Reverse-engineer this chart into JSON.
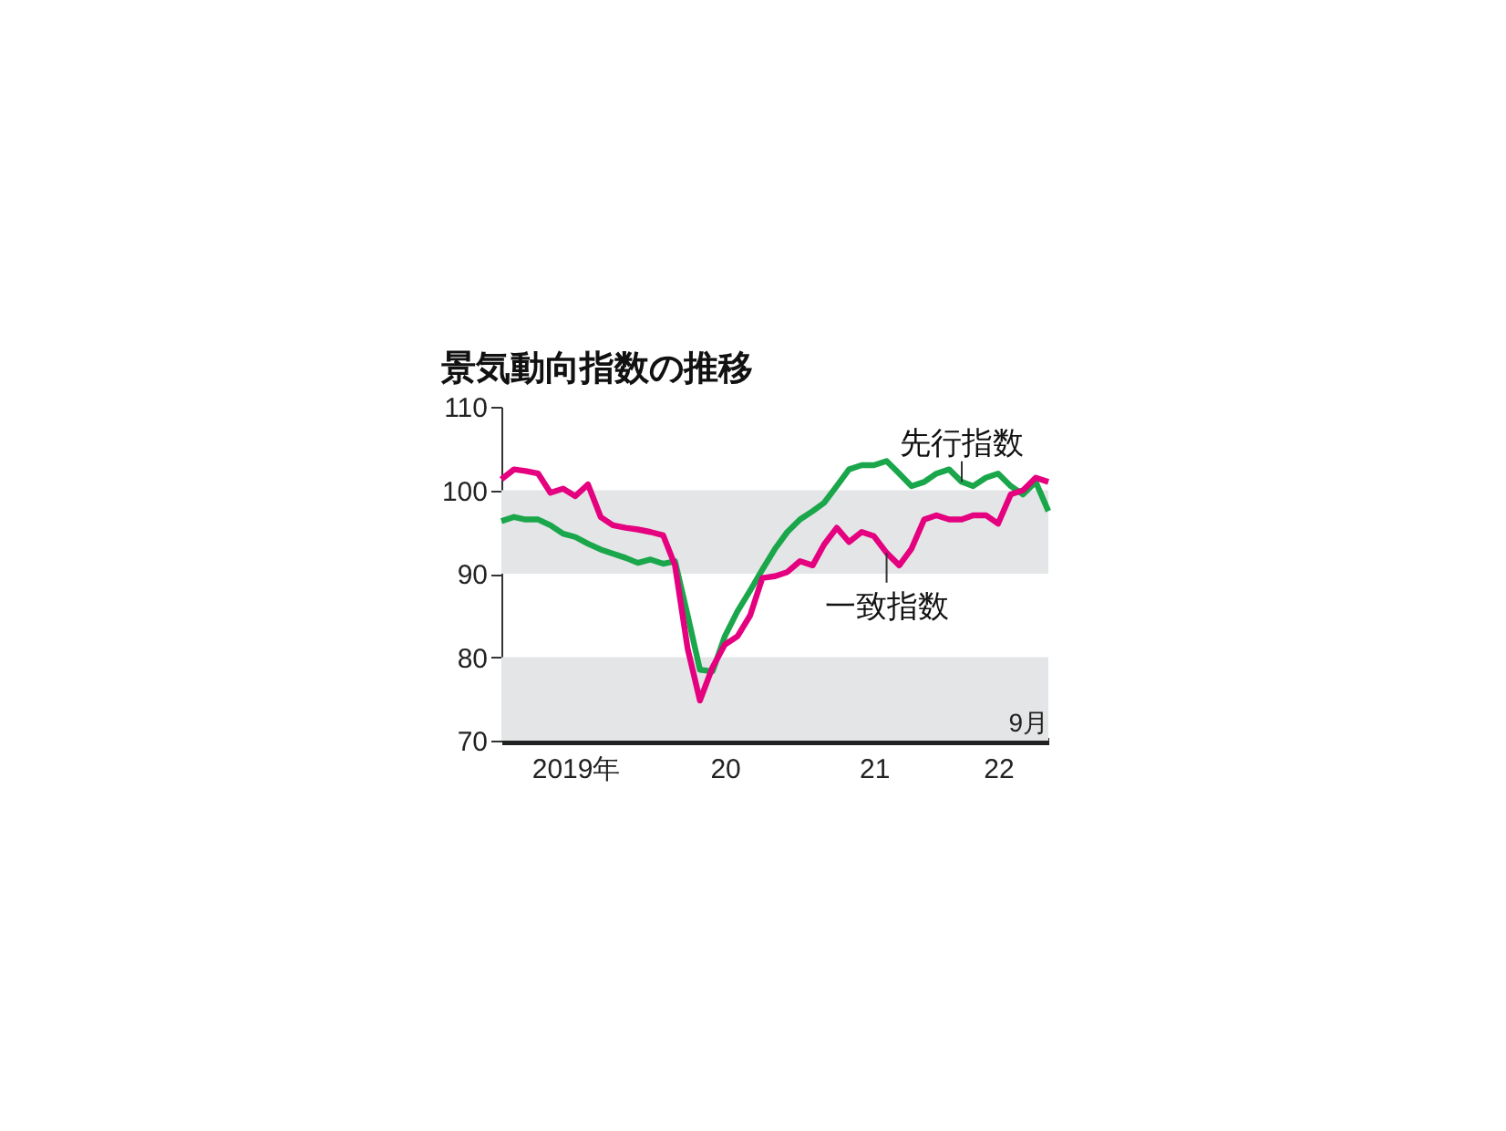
{
  "chart_data": {
    "type": "line",
    "title": "景気動向指数の推移",
    "x": [
      "2019-01",
      "2019-02",
      "2019-03",
      "2019-04",
      "2019-05",
      "2019-06",
      "2019-07",
      "2019-08",
      "2019-09",
      "2019-10",
      "2019-11",
      "2019-12",
      "2020-01",
      "2020-02",
      "2020-03",
      "2020-04",
      "2020-05",
      "2020-06",
      "2020-07",
      "2020-08",
      "2020-09",
      "2020-10",
      "2020-11",
      "2020-12",
      "2021-01",
      "2021-02",
      "2021-03",
      "2021-04",
      "2021-05",
      "2021-06",
      "2021-07",
      "2021-08",
      "2021-09",
      "2021-10",
      "2021-11",
      "2021-12",
      "2022-01",
      "2022-02",
      "2022-03",
      "2022-04",
      "2022-05",
      "2022-06",
      "2022-07",
      "2022-08",
      "2022-09"
    ],
    "series": [
      {
        "name": "先行指数",
        "color": "#1aa64a",
        "values": [
          96.3,
          96.8,
          96.5,
          96.5,
          95.8,
          94.8,
          94.4,
          93.6,
          92.9,
          92.4,
          91.9,
          91.3,
          91.7,
          91.2,
          91.5,
          85,
          78.5,
          78.3,
          82.5,
          85.5,
          88,
          90.5,
          93,
          95,
          96.5,
          97.5,
          98.5,
          100.5,
          102.5,
          103,
          103,
          103.5,
          102,
          100.5,
          101,
          102,
          102.5,
          101,
          100.5,
          101.5,
          102,
          100.5,
          99.5,
          101,
          97.5
        ]
      },
      {
        "name": "一致指数",
        "color": "#e4007f",
        "values": [
          101.3,
          102.5,
          102.3,
          102,
          99.7,
          100.2,
          99.3,
          100.7,
          96.8,
          95.8,
          95.5,
          95.3,
          95,
          94.6,
          91,
          81,
          74.8,
          78.8,
          81.5,
          82.5,
          85,
          89.5,
          89.7,
          90.2,
          91.5,
          91,
          93.5,
          95.5,
          93.8,
          95,
          94.5,
          92.5,
          91,
          93,
          96.5,
          97,
          96.5,
          96.5,
          97,
          97,
          96,
          99.5,
          100,
          101.5,
          101
        ]
      }
    ],
    "xlim": [
      "2019-01",
      "2022-09"
    ],
    "xticks": [
      {
        "value": "2019-07",
        "label": "2019年"
      },
      {
        "value": "2020-07",
        "label": "20"
      },
      {
        "value": "2021-07",
        "label": "21"
      },
      {
        "value": "2022-05",
        "label": "22"
      }
    ],
    "ylim": [
      70,
      110
    ],
    "yticks": [
      70,
      80,
      90,
      100,
      110
    ],
    "bands": [
      {
        "axis": "y",
        "from": 90,
        "to": 100,
        "color": "#e4e5e7"
      },
      {
        "axis": "y",
        "from": 70,
        "to": 80,
        "color": "#e4e5e7"
      }
    ],
    "annotations": [
      "9月"
    ],
    "legend": false,
    "grid": false
  }
}
